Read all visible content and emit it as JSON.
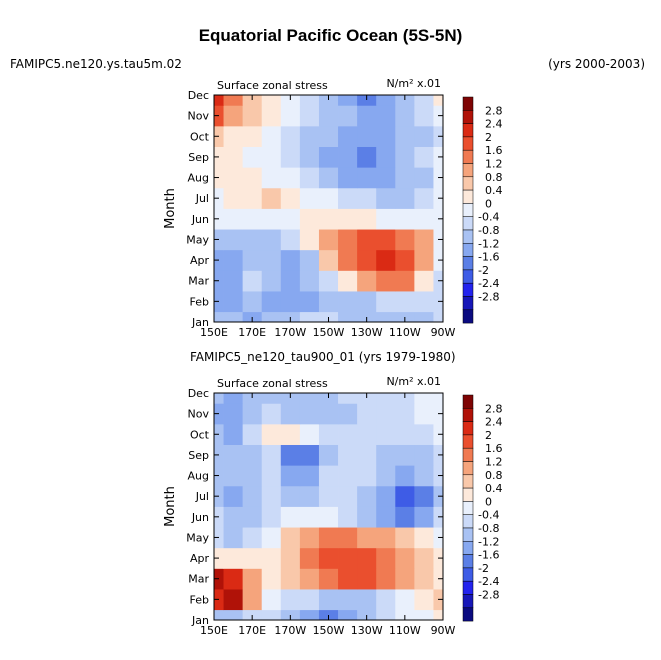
{
  "title": "Equatorial Pacific Ocean (5S-5N)",
  "left_subtitle": "FAMIPC5.ne120.ys.tau5m.02",
  "right_subtitle": "(yrs 2000-2003)",
  "mid_subtitle": "FAMIPC5_ne120_tau900_01 (yrs 1979-1980)",
  "colors": [
    "#0b0b80",
    "#1717b8",
    "#2323ee",
    "#3e5ce6",
    "#5b7fe6",
    "#87a8f0",
    "#a9c2f3",
    "#cbdaf8",
    "#e9f0fc",
    "#fde9db",
    "#f9c8aa",
    "#f5a47c",
    "#f07a52",
    "#ea4f2e",
    "#da2a14",
    "#b01208",
    "#7e0404"
  ],
  "chart_data": [
    {
      "type": "heatmap",
      "name": "model-2000-2003",
      "left_label": "Surface zonal stress",
      "right_label": "N/m² x.01",
      "xlabel": "",
      "ylabel": "Month",
      "xlim": [
        150,
        270
      ],
      "x_ticks": [
        "150E",
        "170E",
        "170W",
        "150W",
        "130W",
        "110W",
        "90W"
      ],
      "y_ticks": [
        "Jan",
        "Feb",
        "Mar",
        "Apr",
        "May",
        "Jun",
        "Jul",
        "Aug",
        "Sep",
        "Oct",
        "Nov",
        "Dec"
      ],
      "legend_levels": [
        "-2.8",
        "-2.4",
        "-2",
        "-1.6",
        "-1.2",
        "-0.8",
        "-0.4",
        "0",
        "0.4",
        "0.8",
        "1.2",
        "1.6",
        "2",
        "2.4",
        "2.8"
      ],
      "values": [
        [
          -0.8,
          -0.8,
          -1.2,
          -0.8,
          -0.6,
          -0.4,
          -0.4,
          -0.6,
          -0.8,
          -0.8,
          -0.8,
          -0.6,
          -0.4
        ],
        [
          -1.2,
          -1.2,
          -0.8,
          -1.2,
          -1.2,
          -1.0,
          -0.6,
          -0.6,
          -0.6,
          -0.4,
          -0.4,
          -0.2,
          -0.2
        ],
        [
          -1.2,
          -1.2,
          -0.4,
          -0.8,
          -1.2,
          -0.8,
          -0.4,
          0.4,
          1.2,
          1.6,
          1.6,
          0.6,
          -0.2
        ],
        [
          -1.2,
          -1.0,
          -0.6,
          -0.8,
          -1.2,
          -0.6,
          0.8,
          1.6,
          2.0,
          2.6,
          2.0,
          1.2,
          0.0
        ],
        [
          -0.6,
          -0.8,
          -0.8,
          -0.6,
          -0.2,
          0.4,
          1.2,
          1.6,
          2.0,
          2.0,
          1.6,
          1.2,
          0.2
        ],
        [
          0.2,
          0.2,
          0.0,
          0.0,
          0.2,
          0.4,
          0.4,
          0.4,
          0.4,
          0.2,
          0.2,
          0.2,
          0.2
        ],
        [
          0.2,
          0.4,
          0.4,
          0.8,
          0.4,
          0.2,
          0.0,
          -0.2,
          -0.4,
          -0.6,
          -0.6,
          -0.4,
          0.0
        ],
        [
          0.4,
          0.4,
          0.4,
          0.2,
          0.0,
          -0.4,
          -0.8,
          -1.2,
          -1.2,
          -1.0,
          -0.8,
          -0.6,
          0.0
        ],
        [
          0.4,
          0.4,
          0.2,
          0.0,
          -0.4,
          -0.8,
          -1.2,
          -1.2,
          -1.6,
          -1.2,
          -0.8,
          -0.4,
          0.0
        ],
        [
          0.8,
          0.6,
          0.4,
          0.0,
          -0.4,
          -0.8,
          -0.8,
          -1.2,
          -1.2,
          -1.2,
          -0.8,
          -0.6,
          -0.2
        ],
        [
          2.0,
          1.2,
          0.8,
          0.4,
          0.0,
          -0.4,
          -0.8,
          -0.8,
          -1.2,
          -1.2,
          -0.8,
          -0.4,
          0.2
        ],
        [
          2.4,
          1.6,
          0.8,
          0.4,
          0.0,
          -0.4,
          -0.8,
          -1.2,
          -1.6,
          -1.2,
          -0.8,
          -0.4,
          0.4
        ]
      ]
    },
    {
      "type": "heatmap",
      "name": "model-1979-1980",
      "left_label": "Surface zonal stress",
      "right_label": "N/m² x.01",
      "xlabel": "",
      "ylabel": "Month",
      "xlim": [
        150,
        270
      ],
      "x_ticks": [
        "150E",
        "170E",
        "170W",
        "150W",
        "130W",
        "110W",
        "90W"
      ],
      "y_ticks": [
        "Jan",
        "Feb",
        "Mar",
        "Apr",
        "May",
        "Jun",
        "Jul",
        "Aug",
        "Sep",
        "Oct",
        "Nov",
        "Dec"
      ],
      "legend_levels": [
        "-2.8",
        "-2.4",
        "-2",
        "-1.6",
        "-1.2",
        "-0.8",
        "-0.4",
        "0",
        "0.4",
        "0.8",
        "1.2",
        "1.6",
        "2",
        "2.4",
        "2.8"
      ],
      "values": [
        [
          -0.8,
          -0.8,
          -0.4,
          -0.4,
          -0.8,
          -1.2,
          -1.6,
          -1.2,
          -0.8,
          -0.4,
          0.0,
          0.2,
          0.4
        ],
        [
          2.4,
          2.8,
          1.2,
          0.2,
          -0.4,
          -0.4,
          -0.8,
          -0.8,
          -0.6,
          -0.4,
          0.0,
          0.4,
          0.8
        ],
        [
          2.8,
          2.6,
          1.2,
          0.4,
          0.8,
          1.2,
          1.6,
          2.0,
          2.0,
          1.6,
          1.2,
          0.8,
          0.4
        ],
        [
          0.4,
          0.4,
          0.4,
          0.4,
          0.8,
          1.6,
          2.0,
          2.0,
          2.0,
          1.6,
          1.2,
          0.8,
          0.4
        ],
        [
          -0.4,
          -0.8,
          -0.4,
          0.0,
          0.8,
          1.2,
          1.6,
          1.6,
          1.2,
          1.2,
          0.8,
          0.4,
          0.0
        ],
        [
          -0.4,
          -0.8,
          -0.8,
          -0.4,
          0.0,
          0.0,
          0.0,
          -0.4,
          -0.8,
          -1.2,
          -1.6,
          -1.2,
          -0.4
        ],
        [
          -0.8,
          -1.2,
          -0.8,
          -0.4,
          -0.8,
          -0.8,
          -0.4,
          -0.4,
          -0.8,
          -1.2,
          -2.0,
          -1.6,
          -0.8
        ],
        [
          -0.8,
          -0.8,
          -0.8,
          -0.4,
          -1.2,
          -1.2,
          -0.4,
          -0.4,
          -0.4,
          -0.8,
          -1.2,
          -0.8,
          -0.4
        ],
        [
          -0.8,
          -0.8,
          -0.8,
          -0.4,
          -1.6,
          -1.6,
          -0.8,
          -0.4,
          -0.4,
          -0.8,
          -0.8,
          -0.8,
          -0.4
        ],
        [
          -0.8,
          -1.2,
          -0.4,
          0.4,
          0.4,
          0.0,
          -0.4,
          -0.4,
          -0.4,
          -0.4,
          -0.4,
          -0.4,
          0.0
        ],
        [
          -1.2,
          -1.2,
          -0.8,
          -0.4,
          -0.8,
          -0.8,
          -0.8,
          -0.8,
          -0.4,
          -0.4,
          -0.4,
          0.0,
          0.0
        ],
        [
          -0.8,
          -1.2,
          -0.8,
          -0.8,
          -0.8,
          -0.8,
          -0.8,
          -0.4,
          -0.4,
          -0.4,
          -0.4,
          0.0,
          0.0
        ]
      ]
    }
  ]
}
